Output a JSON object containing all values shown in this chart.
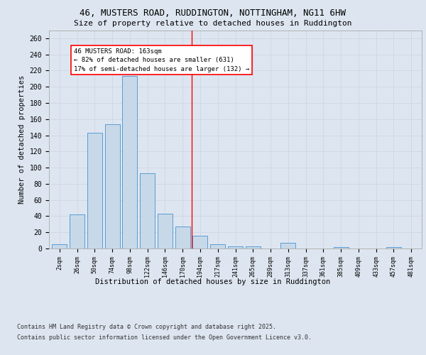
{
  "title_line1": "46, MUSTERS ROAD, RUDDINGTON, NOTTINGHAM, NG11 6HW",
  "title_line2": "Size of property relative to detached houses in Ruddington",
  "xlabel": "Distribution of detached houses by size in Ruddington",
  "ylabel": "Number of detached properties",
  "categories": [
    "2sqm",
    "26sqm",
    "50sqm",
    "74sqm",
    "98sqm",
    "122sqm",
    "146sqm",
    "170sqm",
    "194sqm",
    "217sqm",
    "241sqm",
    "265sqm",
    "289sqm",
    "313sqm",
    "337sqm",
    "361sqm",
    "385sqm",
    "409sqm",
    "433sqm",
    "457sqm",
    "481sqm"
  ],
  "values": [
    5,
    42,
    143,
    154,
    213,
    93,
    43,
    27,
    16,
    5,
    3,
    3,
    0,
    7,
    0,
    0,
    2,
    0,
    0,
    2,
    0
  ],
  "bar_color": "#c7d9e8",
  "bar_edge_color": "#5b9bd5",
  "grid_color": "#d0d8e4",
  "bg_color": "#dde6f0",
  "plot_bg_color": "#dde6f0",
  "red_line_x": 7.5,
  "annotation_text": "46 MUSTERS ROAD: 163sqm\n← 82% of detached houses are smaller (631)\n17% of semi-detached houses are larger (132) →",
  "ylim": [
    0,
    270
  ],
  "yticks": [
    0,
    20,
    40,
    60,
    80,
    100,
    120,
    140,
    160,
    180,
    200,
    220,
    240,
    260
  ],
  "footer_line1": "Contains HM Land Registry data © Crown copyright and database right 2025.",
  "footer_line2": "Contains public sector information licensed under the Open Government Licence v3.0."
}
